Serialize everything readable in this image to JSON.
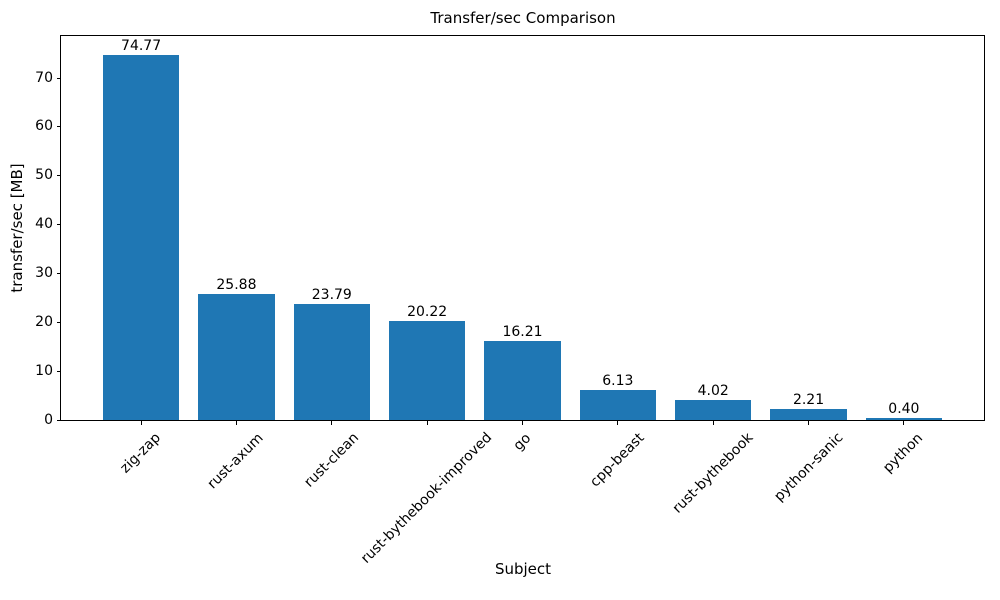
{
  "chart_data": {
    "type": "bar",
    "title": "Transfer/sec Comparison",
    "xlabel": "Subject",
    "ylabel": "transfer/sec [MB]",
    "categories": [
      "zig-zap",
      "rust-axum",
      "rust-clean",
      "rust-bythebook-improved",
      "go",
      "cpp-beast",
      "rust-bythebook",
      "python-sanic",
      "python"
    ],
    "values": [
      74.77,
      25.88,
      23.79,
      20.22,
      16.21,
      6.13,
      4.02,
      2.21,
      0.4
    ],
    "value_label_decimals": 2,
    "bar_color": "#1f77b4",
    "axis_color": "#000000",
    "text_color": "#000000",
    "background_color": "#ffffff",
    "ylim": [
      0,
      78.6
    ],
    "yticks": [
      0,
      10,
      20,
      30,
      40,
      50,
      60,
      70
    ],
    "xlim": [
      -0.84,
      8.84
    ],
    "bar_width": 0.8,
    "xtick_rotation_deg": 45,
    "grid": false,
    "legend": "none"
  }
}
